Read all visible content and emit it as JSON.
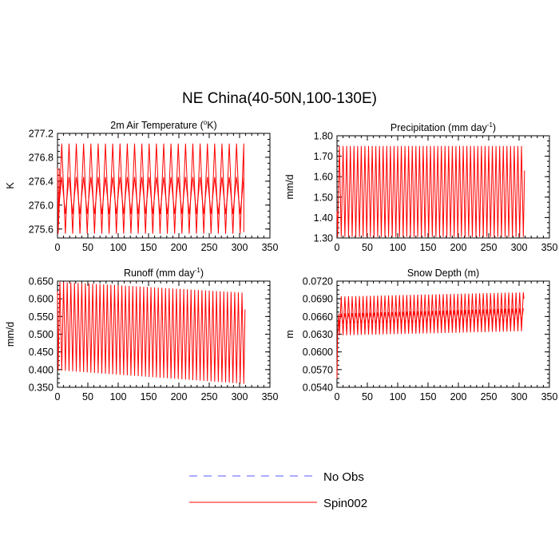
{
  "title": "NE China(40-50N,100-130E)",
  "colors": {
    "obs": "#5a5aff",
    "model": "#ff0000",
    "axis": "#000000"
  },
  "legend": [
    {
      "label": "No Obs",
      "style": "dashed",
      "color": "#5a5aff"
    },
    {
      "label": "Spin002",
      "style": "solid",
      "color": "#ff0000"
    }
  ],
  "chart_data": [
    {
      "id": "temp",
      "type": "line",
      "title": "2m Air Temperature (",
      "title_sup": "o",
      "title_after": "K)",
      "ylabel": "K",
      "xlim": [
        0,
        350
      ],
      "ylim": [
        275.45,
        277.2
      ],
      "xticks": [
        0,
        50,
        100,
        150,
        200,
        250,
        300,
        350
      ],
      "yticks": [
        275.6,
        276.0,
        276.4,
        276.8,
        277.2
      ],
      "ytick_labels": [
        "275.6",
        "276.0",
        "276.4",
        "276.8",
        "277.2"
      ],
      "series": [
        {
          "name": "Spin002",
          "x_start": 1,
          "x_end": 307,
          "period": 12,
          "envelopes": [
            {
              "min": [
                275.52,
                275.52
              ],
              "max": [
                277.03,
                277.03
              ]
            },
            {
              "min": [
                275.85,
                275.85
              ],
              "max": [
                276.47,
                276.47
              ]
            }
          ],
          "lead_in": [
            [
              0,
              276.62
            ],
            [
              1,
              275.55
            ],
            [
              3,
              276.6
            ]
          ],
          "tail": [
            [
              307,
              275.55
            ]
          ]
        }
      ]
    },
    {
      "id": "precip",
      "type": "line",
      "title": "Precipitation (mm day",
      "title_sup": "-1",
      "title_after": ")",
      "ylabel": "mm/d",
      "xlim": [
        0,
        350
      ],
      "ylim": [
        1.3,
        1.8
      ],
      "xticks": [
        0,
        50,
        100,
        150,
        200,
        250,
        300,
        350
      ],
      "yticks": [
        1.3,
        1.4,
        1.5,
        1.6,
        1.7,
        1.8
      ],
      "ytick_labels": [
        "1.30",
        "1.40",
        "1.50",
        "1.60",
        "1.70",
        "1.80"
      ],
      "series": [
        {
          "name": "Spin002",
          "x_start": 1,
          "x_end": 308,
          "period": 6,
          "envelopes": [
            {
              "min": [
                1.305,
                1.305
              ],
              "max": [
                1.75,
                1.75
              ]
            }
          ],
          "lead_in": [
            [
              0,
              1.43
            ],
            [
              1,
              1.31
            ]
          ],
          "tail": [
            [
              309,
              1.63
            ]
          ]
        }
      ]
    },
    {
      "id": "runoff",
      "type": "line",
      "title": "Runoff (mm day",
      "title_sup": "-1",
      "title_after": ")",
      "ylabel": "mm/d",
      "xlim": [
        0,
        350
      ],
      "ylim": [
        0.35,
        0.65
      ],
      "xticks": [
        0,
        50,
        100,
        150,
        200,
        250,
        300,
        350
      ],
      "yticks": [
        0.35,
        0.4,
        0.45,
        0.5,
        0.55,
        0.6,
        0.65
      ],
      "ytick_labels": [
        "0.350",
        "0.400",
        "0.450",
        "0.500",
        "0.550",
        "0.600",
        "0.650"
      ],
      "series": [
        {
          "name": "Spin002",
          "x_start": 1,
          "x_end": 307,
          "period": 6,
          "envelopes": [
            {
              "min": [
                0.398,
                0.36
              ],
              "max": [
                0.648,
                0.617
              ]
            }
          ],
          "lead_in": [
            [
              0,
              0.62
            ],
            [
              1,
              0.4
            ]
          ],
          "tail": [
            [
              309,
              0.57
            ]
          ]
        }
      ]
    },
    {
      "id": "snow",
      "type": "line",
      "title": "Snow Depth (m)",
      "title_sup": "",
      "title_after": "",
      "ylabel": "m",
      "xlim": [
        0,
        350
      ],
      "ylim": [
        0.054,
        0.072
      ],
      "xticks": [
        0,
        50,
        100,
        150,
        200,
        250,
        300,
        350
      ],
      "yticks": [
        0.054,
        0.057,
        0.06,
        0.063,
        0.066,
        0.069,
        0.072
      ],
      "ytick_labels": [
        "0.0540",
        "0.0570",
        "0.0600",
        "0.0630",
        "0.0660",
        "0.0690",
        "0.0720"
      ],
      "series": [
        {
          "name": "Spin002",
          "x_start": 4,
          "x_end": 307,
          "period": 6,
          "envelopes": [
            {
              "min": [
                0.0628,
                0.0635
              ],
              "max": [
                0.0694,
                0.0701
              ]
            },
            {
              "min": [
                0.0648,
                0.065
              ],
              "max": [
                0.0665,
                0.0674
              ]
            }
          ],
          "lead_in": [
            [
              0,
              0.0555
            ],
            [
              1,
              0.063
            ],
            [
              3,
              0.0665
            ]
          ],
          "tail": [
            [
              308,
              0.069
            ]
          ]
        }
      ]
    }
  ]
}
